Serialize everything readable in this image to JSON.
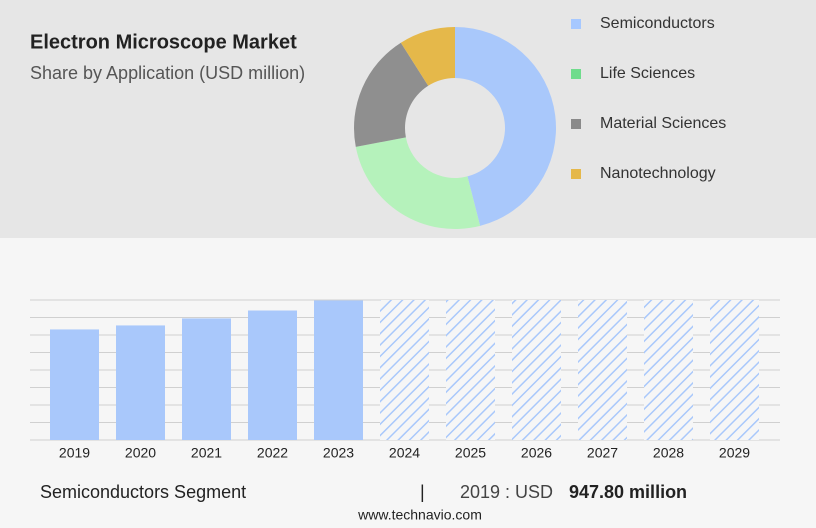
{
  "chart_data": [
    {
      "type": "pie",
      "title": "Electron Microscope Market",
      "subtitle": "Share by Application (USD million)",
      "categories": [
        "Semiconductors",
        "Life Sciences",
        "Material Sciences",
        "Nanotechnology"
      ],
      "values": [
        46,
        26,
        19,
        9
      ],
      "colors": [
        "#a9c8fb",
        "#b5f2bb",
        "#8f8f8f",
        "#e5b84a"
      ],
      "legend_colors": [
        "#a6c8ff",
        "#6fdc8c",
        "#8a8a8a",
        "#e5b84a"
      ]
    },
    {
      "type": "bar",
      "categories": [
        "2019",
        "2020",
        "2021",
        "2022",
        "2023",
        "2024",
        "2025",
        "2026",
        "2027",
        "2028",
        "2029"
      ],
      "values": [
        947.8,
        982,
        1042,
        1110,
        1196,
        null,
        null,
        null,
        null,
        null,
        null
      ],
      "color": "#a9c8fb",
      "ylim": [
        0,
        1200
      ],
      "grid": true
    }
  ],
  "footer": {
    "segment": "Semiconductors Segment",
    "separator": "|",
    "year_label": "2019 : USD",
    "value": "947.80 million",
    "source": "www.technavio.com"
  }
}
